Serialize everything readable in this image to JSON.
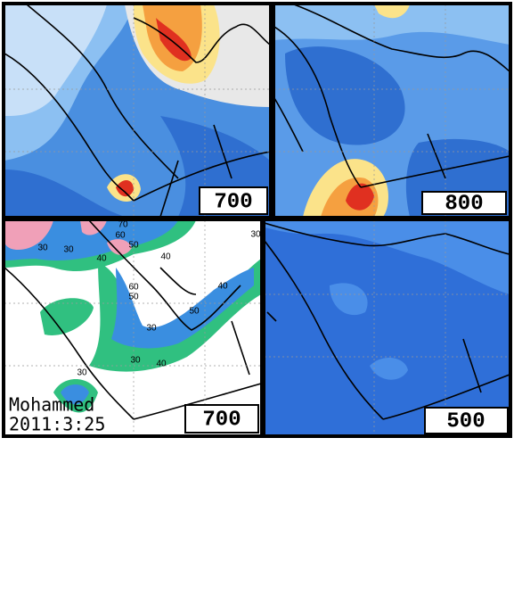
{
  "panels": [
    {
      "level": "700"
    },
    {
      "level": "800"
    },
    {
      "level": "700",
      "contour_labels": [
        "70",
        "60",
        "50",
        "30",
        "40",
        "40",
        "30",
        "60",
        "50",
        "40",
        "50",
        "30",
        "30",
        "40",
        "30",
        "30"
      ],
      "signature": {
        "name": "Mohammed",
        "date": "2011:3:25"
      }
    },
    {
      "level": "500"
    }
  ]
}
